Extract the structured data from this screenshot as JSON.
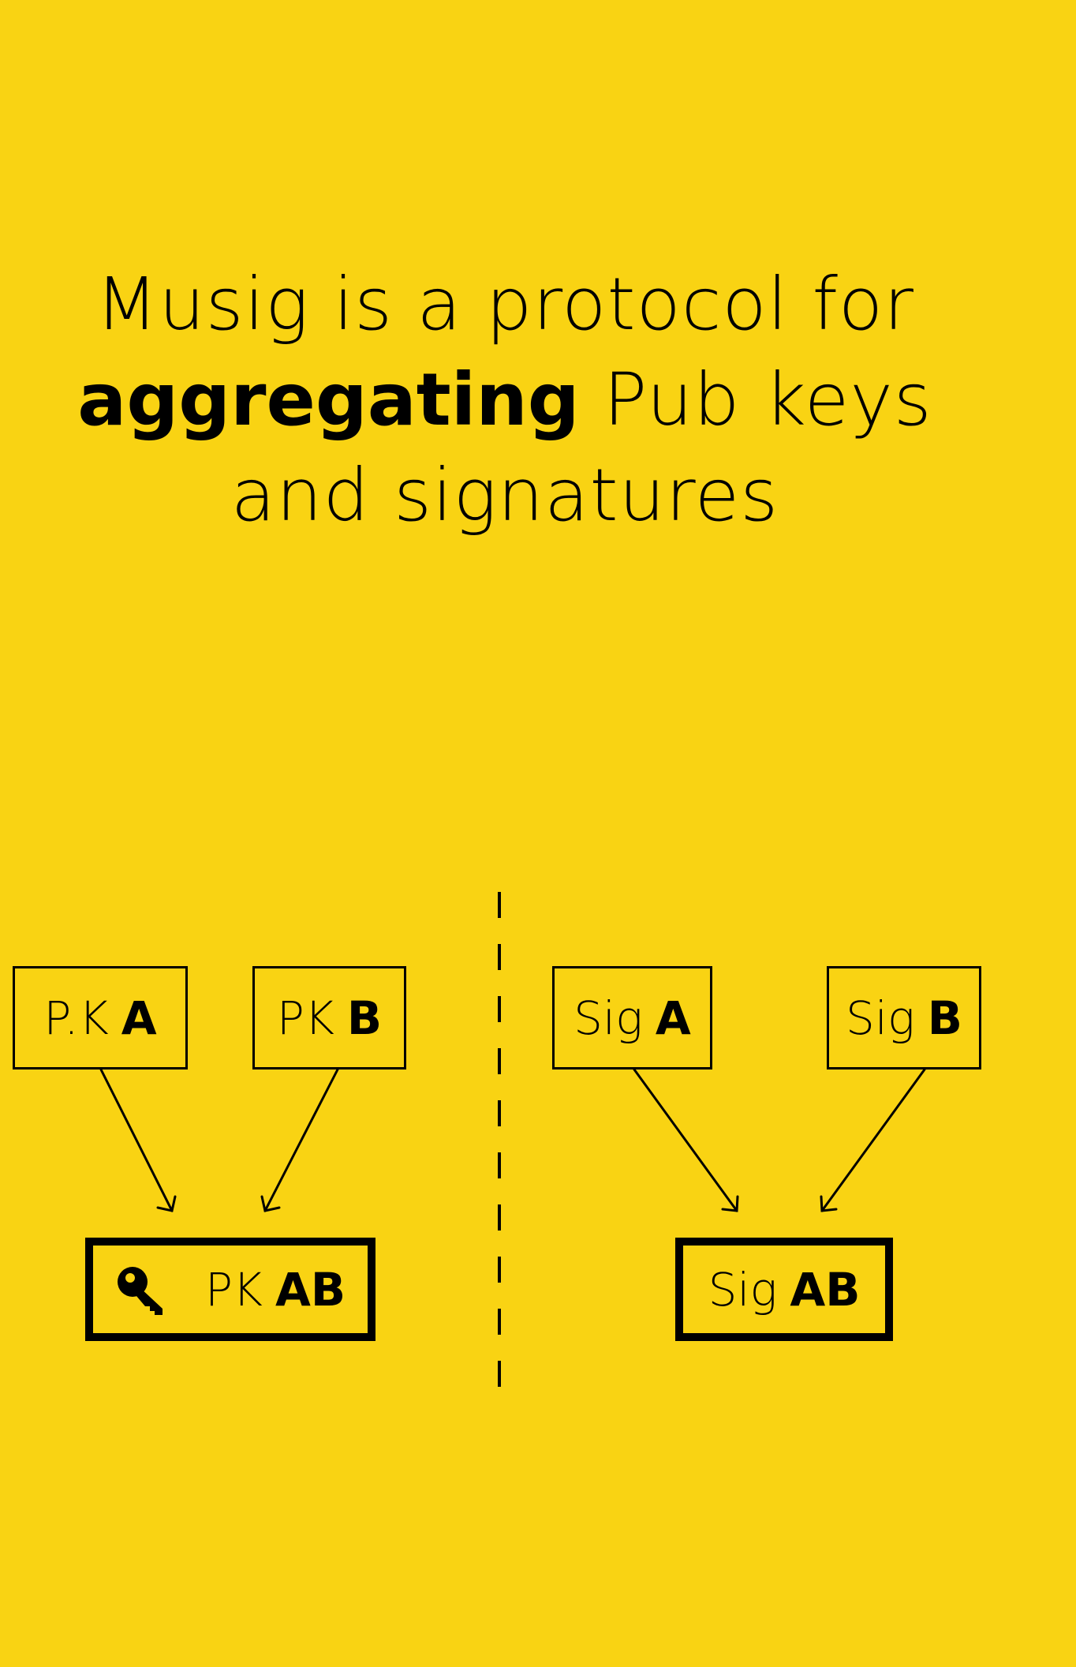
{
  "headline": {
    "line1": "Musig is a protocol for",
    "line2_bold": "aggregating",
    "line2_rest": "Pub keys",
    "line3": "and signatures"
  },
  "left": {
    "inputs": [
      {
        "prefix": "P.K",
        "letter": "A"
      },
      {
        "prefix": "PK",
        "letter": "B"
      }
    ],
    "output": {
      "prefix": "PK",
      "letters": "AB",
      "icon": "key-icon"
    }
  },
  "right": {
    "inputs": [
      {
        "prefix": "Sig",
        "letter": "A"
      },
      {
        "prefix": "Sig",
        "letter": "B"
      }
    ],
    "output": {
      "prefix": "Sig",
      "letters": "AB"
    }
  },
  "colors": {
    "background": "#F9D313",
    "ink": "#000000"
  }
}
